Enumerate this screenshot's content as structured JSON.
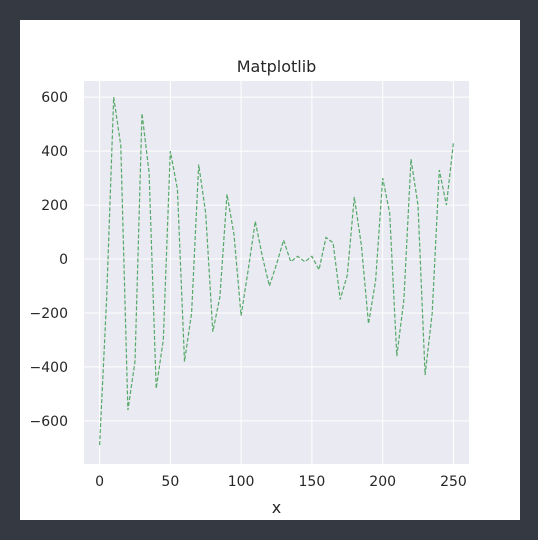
{
  "chart_data": {
    "type": "line",
    "title": "Matplotlib",
    "xlabel": "x",
    "ylabel": "",
    "xlim": [
      -11,
      261
    ],
    "ylim": [
      -760,
      660
    ],
    "xticks": [
      0,
      50,
      100,
      150,
      200,
      250
    ],
    "yticks": [
      -600,
      -400,
      -200,
      0,
      200,
      400,
      600
    ],
    "xtick_labels": [
      "0",
      "50",
      "100",
      "150",
      "200",
      "250"
    ],
    "ytick_labels": [
      "−600",
      "−400",
      "−200",
      "0",
      "200",
      "400",
      "600"
    ],
    "grid": true,
    "series": [
      {
        "name": "",
        "color": "#55a868",
        "linestyle": "dashed",
        "x": [
          0,
          5,
          10,
          15,
          20,
          25,
          30,
          35,
          40,
          45,
          50,
          55,
          60,
          65,
          70,
          75,
          80,
          85,
          90,
          95,
          100,
          105,
          110,
          115,
          120,
          125,
          130,
          135,
          140,
          145,
          150,
          155,
          160,
          165,
          170,
          175,
          180,
          185,
          190,
          195,
          200,
          205,
          210,
          215,
          220,
          225,
          230,
          235,
          240,
          245,
          250
        ],
        "y": [
          -690,
          -150,
          600,
          420,
          -560,
          -380,
          540,
          320,
          -480,
          -300,
          400,
          260,
          -380,
          -200,
          350,
          170,
          -270,
          -140,
          240,
          90,
          -210,
          -40,
          140,
          10,
          -100,
          -20,
          70,
          -10,
          10,
          -10,
          10,
          -40,
          80,
          60,
          -150,
          -60,
          230,
          50,
          -240,
          -80,
          300,
          170,
          -360,
          -150,
          370,
          200,
          -430,
          -200,
          330,
          200,
          430
        ]
      }
    ]
  }
}
